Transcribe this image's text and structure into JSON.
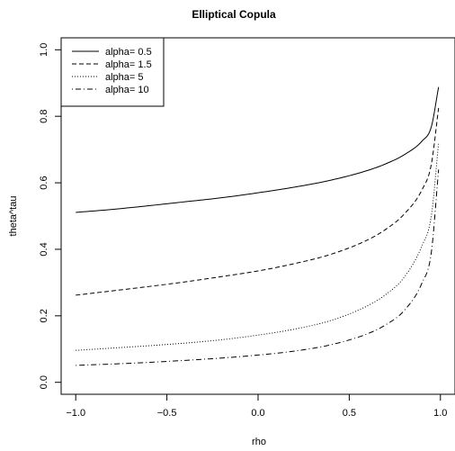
{
  "chart_data": {
    "type": "line",
    "title": "Elliptical Copula",
    "xlabel": "rho",
    "ylabel": "theta^tau",
    "xlim": [
      -1.08,
      1.08
    ],
    "ylim": [
      -0.036,
      1.036
    ],
    "xticks": [
      -1.0,
      -0.5,
      0.0,
      0.5,
      1.0
    ],
    "xtick_labels": [
      "−1.0",
      "−0.5",
      "0.0",
      "0.5",
      "1.0"
    ],
    "yticks": [
      0.0,
      0.2,
      0.4,
      0.6,
      0.8,
      1.0
    ],
    "ytick_labels": [
      "0.0",
      "0.2",
      "0.4",
      "0.6",
      "0.8",
      "1.0"
    ],
    "grid": false,
    "legend_position": "top-left",
    "series": [
      {
        "name": "alpha= 0.5",
        "linestyle": "solid",
        "color": "#000000",
        "x": [
          -1.0,
          -0.8,
          -0.6,
          -0.4,
          -0.2,
          0.0,
          0.2,
          0.4,
          0.6,
          0.7,
          0.8,
          0.9,
          0.95,
          0.99
        ],
        "y": [
          0.511,
          0.52,
          0.531,
          0.543,
          0.555,
          0.57,
          0.587,
          0.608,
          0.637,
          0.657,
          0.684,
          0.726,
          0.768,
          0.888
        ]
      },
      {
        "name": "alpha= 1.5",
        "linestyle": "dashed",
        "color": "#000000",
        "x": [
          -1.0,
          -0.8,
          -0.6,
          -0.4,
          -0.2,
          0.0,
          0.2,
          0.4,
          0.6,
          0.7,
          0.8,
          0.9,
          0.95,
          0.99
        ],
        "y": [
          0.262,
          0.275,
          0.288,
          0.302,
          0.318,
          0.335,
          0.357,
          0.385,
          0.428,
          0.46,
          0.505,
          0.58,
          0.655,
          0.825
        ]
      },
      {
        "name": "alpha= 5",
        "linestyle": "dotted",
        "color": "#000000",
        "x": [
          -1.0,
          -0.8,
          -0.6,
          -0.4,
          -0.2,
          0.0,
          0.2,
          0.4,
          0.6,
          0.7,
          0.8,
          0.9,
          0.95,
          0.99
        ],
        "y": [
          0.096,
          0.103,
          0.11,
          0.118,
          0.128,
          0.142,
          0.16,
          0.186,
          0.23,
          0.264,
          0.315,
          0.412,
          0.5,
          0.72
        ]
      },
      {
        "name": "alpha= 10",
        "linestyle": "dotdash",
        "color": "#000000",
        "x": [
          -1.0,
          -0.8,
          -0.6,
          -0.4,
          -0.2,
          0.0,
          0.2,
          0.4,
          0.6,
          0.7,
          0.8,
          0.9,
          0.95,
          0.99
        ],
        "y": [
          0.051,
          0.055,
          0.06,
          0.066,
          0.073,
          0.082,
          0.094,
          0.113,
          0.146,
          0.173,
          0.215,
          0.3,
          0.39,
          0.64
        ]
      }
    ]
  }
}
